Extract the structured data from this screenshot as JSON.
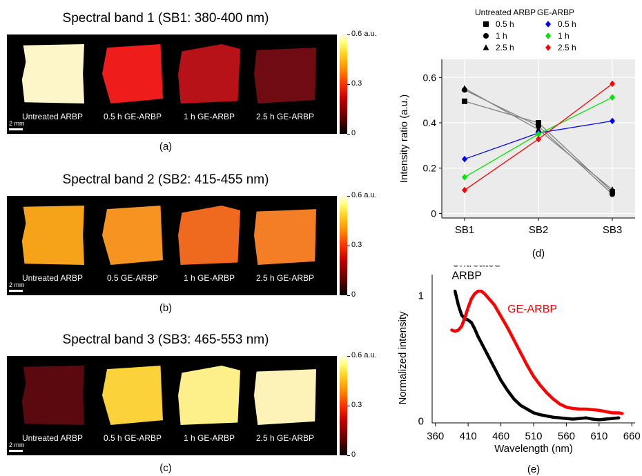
{
  "panels": [
    {
      "title": "Spectral band 1 (SB1: 380-400 nm)",
      "sublabel": "(a)",
      "samples": [
        {
          "label": "Untreated ARBP",
          "color": "#fdf6c9"
        },
        {
          "label": "0.5 h  GE-ARBP",
          "color": "#ef1c1c"
        },
        {
          "label": "1 h GE-ARBP",
          "color": "#b71218"
        },
        {
          "label": "2.5 h GE-ARBP",
          "color": "#6e0c12"
        }
      ]
    },
    {
      "title": "Spectral band 2 (SB2: 415-455 nm)",
      "sublabel": "(b)",
      "samples": [
        {
          "label": "Untreated ARBP",
          "color": "#f6a319"
        },
        {
          "label": "0.5  GE-ARBP",
          "color": "#f69421"
        },
        {
          "label": "1 h GE-ARBP",
          "color": "#ef6a1f"
        },
        {
          "label": "2.5 h GE-ARBP",
          "color": "#f47e26"
        }
      ]
    },
    {
      "title": "Spectral band 3 (SB3: 465-553 nm)",
      "sublabel": "(c)",
      "samples": [
        {
          "label": "Untreated ARBP",
          "color": "#5a0a0f"
        },
        {
          "label": "0.5 h  GE-ARBP",
          "color": "#fbd23a"
        },
        {
          "label": "1 h GE-ARBP",
          "color": "#fdf08a"
        },
        {
          "label": "2.5 h GE-ARBP",
          "color": "#fdf3b8"
        }
      ]
    }
  ],
  "scale_label": "2 mm",
  "colorbar": {
    "ticks": [
      "0.6 a.u.",
      "0.3",
      "0"
    ]
  },
  "chart_data": [
    {
      "type": "line",
      "sublabel": "(d)",
      "categories": [
        "SB1",
        "SB2",
        "SB3"
      ],
      "ylabel": "Intensity ratio (a.u.)",
      "ylim": [
        -0.02,
        0.68
      ],
      "yticks": [
        "0",
        "0.2",
        "0.4",
        "0.6"
      ],
      "grid": true,
      "legend_groups": [
        {
          "title": "Untreated ARBP",
          "entries": [
            {
              "name": "0.5 h",
              "marker": "square"
            },
            {
              "name": "1 h",
              "marker": "circle"
            },
            {
              "name": "2.5 h",
              "marker": "triangle"
            }
          ]
        },
        {
          "title": "GE-ARBP",
          "entries": [
            {
              "name": "0.5 h",
              "marker": "diamond",
              "color": "#0000ff"
            },
            {
              "name": "1 h",
              "marker": "diamond",
              "color": "#00e600"
            },
            {
              "name": "2.5 h",
              "marker": "diamond",
              "color": "#ff0000"
            }
          ]
        }
      ],
      "series": [
        {
          "group": "Untreated ARBP",
          "name": "0.5 h",
          "marker": "square",
          "color": "#000000",
          "line_color": "#808080",
          "values": [
            0.495,
            0.4,
            0.095
          ]
        },
        {
          "group": "Untreated ARBP",
          "name": "1 h",
          "marker": "circle",
          "color": "#000000",
          "line_color": "#808080",
          "values": [
            0.545,
            0.385,
            0.085
          ]
        },
        {
          "group": "Untreated ARBP",
          "name": "2.5 h",
          "marker": "triangle",
          "color": "#000000",
          "line_color": "#808080",
          "values": [
            0.552,
            0.37,
            0.105
          ]
        },
        {
          "group": "GE-ARBP",
          "name": "0.5 h",
          "marker": "diamond",
          "color": "#0000ff",
          "line_color": "#0000ff",
          "values": [
            0.24,
            0.355,
            0.408
          ]
        },
        {
          "group": "GE-ARBP",
          "name": "1 h",
          "marker": "diamond",
          "color": "#00e600",
          "line_color": "#00e600",
          "values": [
            0.16,
            0.35,
            0.512
          ]
        },
        {
          "group": "GE-ARBP",
          "name": "2.5 h",
          "marker": "diamond",
          "color": "#ff0000",
          "line_color": "#ff0000",
          "values": [
            0.103,
            0.328,
            0.572
          ]
        }
      ]
    },
    {
      "type": "line",
      "sublabel": "(e)",
      "xlabel": "Wavelength (nm)",
      "ylabel": "Normalized intensity",
      "xlim": [
        355,
        665
      ],
      "ylim": [
        -0.02,
        1.08
      ],
      "xticks": [
        360,
        410,
        460,
        510,
        560,
        610,
        660
      ],
      "yticks": [
        "0",
        "1"
      ],
      "series": [
        {
          "name": "Untreated ARBP",
          "color": "#000000",
          "x": [
            390,
            395,
            400,
            405,
            410,
            415,
            420,
            425,
            430,
            440,
            450,
            460,
            470,
            480,
            490,
            500,
            510,
            520,
            530,
            540,
            550,
            560,
            570,
            580,
            590,
            600,
            610,
            620,
            630,
            640
          ],
          "y": [
            1.03,
            0.92,
            0.84,
            0.81,
            0.8,
            0.78,
            0.73,
            0.67,
            0.62,
            0.52,
            0.42,
            0.32,
            0.24,
            0.17,
            0.12,
            0.09,
            0.06,
            0.045,
            0.035,
            0.025,
            0.02,
            0.015,
            0.01,
            0.015,
            0.02,
            0.01,
            0.005,
            0.01,
            0.015,
            0.02
          ]
        },
        {
          "name": "GE-ARBP",
          "color": "#ff0000",
          "x": [
            385,
            390,
            395,
            400,
            405,
            410,
            415,
            420,
            425,
            430,
            435,
            440,
            445,
            450,
            460,
            470,
            480,
            490,
            500,
            510,
            520,
            530,
            540,
            550,
            560,
            570,
            580,
            590,
            600,
            610,
            620,
            630,
            640,
            645
          ],
          "y": [
            0.72,
            0.71,
            0.72,
            0.75,
            0.82,
            0.9,
            0.97,
            1.01,
            1.03,
            1.03,
            1.01,
            0.98,
            0.95,
            0.92,
            0.83,
            0.74,
            0.64,
            0.54,
            0.44,
            0.35,
            0.28,
            0.22,
            0.17,
            0.13,
            0.105,
            0.095,
            0.09,
            0.09,
            0.085,
            0.08,
            0.07,
            0.06,
            0.06,
            0.055
          ]
        }
      ]
    }
  ]
}
